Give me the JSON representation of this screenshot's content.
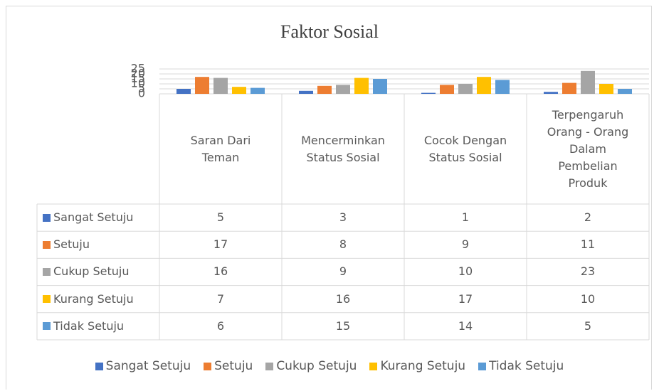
{
  "chart_data": {
    "type": "bar",
    "title": "Faktor Sosial",
    "categories": [
      "Saran Dari Teman",
      "Mencerminkan Status Sosial",
      "Cocok Dengan Status Sosial",
      "Terpengaruh Orang - Orang Dalam Pembelian Produk"
    ],
    "series": [
      {
        "name": "Sangat Setuju",
        "color": "#4472c4",
        "values": [
          5,
          3,
          1,
          2
        ]
      },
      {
        "name": "Setuju",
        "color": "#ed7d31",
        "values": [
          17,
          8,
          9,
          11
        ]
      },
      {
        "name": "Cukup Setuju",
        "color": "#a5a5a5",
        "values": [
          16,
          9,
          10,
          23
        ]
      },
      {
        "name": "Kurang Setuju",
        "color": "#ffc000",
        "values": [
          7,
          16,
          17,
          10
        ]
      },
      {
        "name": "Tidak Setuju",
        "color": "#5b9bd5",
        "values": [
          6,
          15,
          14,
          5
        ]
      }
    ],
    "ylim": [
      0,
      25
    ],
    "yticks": [
      0,
      5,
      10,
      15,
      20,
      25
    ],
    "grid": true,
    "legend": "bottom"
  }
}
